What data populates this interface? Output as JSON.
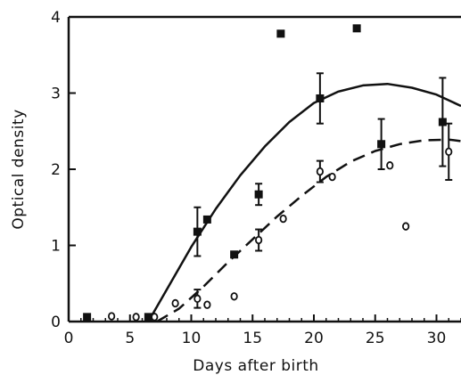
{
  "chart_data": {
    "type": "scatter",
    "title": "",
    "xlabel": "Days after birth",
    "ylabel": "Optical density",
    "xlim": [
      0,
      32
    ],
    "ylim": [
      0,
      4
    ],
    "xticks": [
      0,
      5,
      10,
      15,
      20,
      25,
      30
    ],
    "yticks": [
      0,
      1,
      2,
      3,
      4
    ],
    "grid": false,
    "series": [
      {
        "marker": "filled-square",
        "color": "#111111",
        "points": [
          {
            "x": 1.5,
            "y": 0.06
          },
          {
            "x": 6.5,
            "y": 0.06
          },
          {
            "x": 10.5,
            "y": 1.18,
            "err": 0.32
          },
          {
            "x": 11.3,
            "y": 1.34
          },
          {
            "x": 13.5,
            "y": 0.88
          },
          {
            "x": 15.5,
            "y": 1.67,
            "err": 0.14
          },
          {
            "x": 17.3,
            "y": 3.78
          },
          {
            "x": 20.5,
            "y": 2.93,
            "err": 0.33
          },
          {
            "x": 23.5,
            "y": 3.85
          },
          {
            "x": 25.5,
            "y": 2.33,
            "err": 0.33
          },
          {
            "x": 30.5,
            "y": 2.62,
            "err": 0.58
          }
        ]
      },
      {
        "marker": "open-circle",
        "color": "#111111",
        "points": [
          {
            "x": 3.5,
            "y": 0.07
          },
          {
            "x": 5.5,
            "y": 0.06
          },
          {
            "x": 7.0,
            "y": 0.06
          },
          {
            "x": 8.7,
            "y": 0.24
          },
          {
            "x": 10.5,
            "y": 0.3,
            "err": 0.12
          },
          {
            "x": 11.3,
            "y": 0.22
          },
          {
            "x": 13.5,
            "y": 0.33
          },
          {
            "x": 15.5,
            "y": 1.07,
            "err": 0.14
          },
          {
            "x": 17.5,
            "y": 1.35
          },
          {
            "x": 20.5,
            "y": 1.97,
            "err": 0.14
          },
          {
            "x": 21.5,
            "y": 1.9
          },
          {
            "x": 26.2,
            "y": 2.05
          },
          {
            "x": 27.5,
            "y": 1.25
          },
          {
            "x": 31.0,
            "y": 2.23,
            "err": 0.37
          }
        ]
      }
    ],
    "fit_curves": [
      {
        "style": "solid",
        "points": [
          [
            6.5,
            0.0
          ],
          [
            8,
            0.42
          ],
          [
            10,
            0.98
          ],
          [
            12,
            1.48
          ],
          [
            14,
            1.92
          ],
          [
            16,
            2.3
          ],
          [
            18,
            2.62
          ],
          [
            20,
            2.87
          ],
          [
            22,
            3.02
          ],
          [
            24,
            3.1
          ],
          [
            26,
            3.12
          ],
          [
            28,
            3.07
          ],
          [
            30,
            2.98
          ],
          [
            32,
            2.83
          ]
        ]
      },
      {
        "style": "dashed",
        "points": [
          [
            7.2,
            0.0
          ],
          [
            9,
            0.17
          ],
          [
            11,
            0.46
          ],
          [
            13,
            0.78
          ],
          [
            15,
            1.08
          ],
          [
            17,
            1.38
          ],
          [
            19,
            1.65
          ],
          [
            21,
            1.9
          ],
          [
            23,
            2.1
          ],
          [
            25,
            2.24
          ],
          [
            27,
            2.33
          ],
          [
            29,
            2.38
          ],
          [
            31,
            2.39
          ],
          [
            32,
            2.37
          ]
        ]
      }
    ]
  }
}
